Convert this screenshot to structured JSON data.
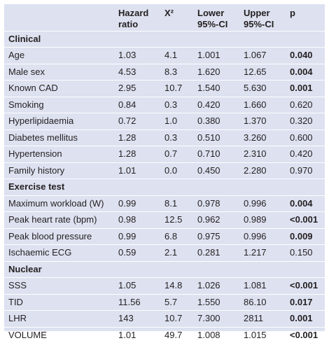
{
  "headers": [
    "",
    "Hazard ratio",
    "X²",
    "Lower 95%-CI",
    "Upper 95%-CI",
    "p"
  ],
  "sections": [
    {
      "title": "Clinical",
      "rows": [
        {
          "label": "Age",
          "hr": "1.03",
          "x2": "4.1",
          "lower": "1.001",
          "upper": "1.067",
          "p": "0.040",
          "sig": true
        },
        {
          "label": "Male sex",
          "hr": "4.53",
          "x2": "8.3",
          "lower": "1.620",
          "upper": "12.65",
          "p": "0.004",
          "sig": true
        },
        {
          "label": "Known CAD",
          "hr": "2.95",
          "x2": "10.7",
          "lower": "1.540",
          "upper": "5.630",
          "p": "0.001",
          "sig": true
        },
        {
          "label": "Smoking",
          "hr": "0.84",
          "x2": "0.3",
          "lower": "0.420",
          "upper": "1.660",
          "p": "0.620",
          "sig": false
        },
        {
          "label": "Hyperlipidaemia",
          "hr": "0.72",
          "x2": "1.0",
          "lower": "0.380",
          "upper": "1.370",
          "p": "0.320",
          "sig": false
        },
        {
          "label": "Diabetes mellitus",
          "hr": "1.28",
          "x2": "0.3",
          "lower": "0.510",
          "upper": "3.260",
          "p": "0.600",
          "sig": false
        },
        {
          "label": "Hypertension",
          "hr": "1.28",
          "x2": "0.7",
          "lower": "0.710",
          "upper": "2.310",
          "p": "0.420",
          "sig": false
        },
        {
          "label": "Family history",
          "hr": "1.01",
          "x2": "0.0",
          "lower": "0.450",
          "upper": "2.280",
          "p": "0.970",
          "sig": false
        }
      ]
    },
    {
      "title": "Exercise test",
      "rows": [
        {
          "label": "Maximum workload (W)",
          "hr": "0.99",
          "x2": "8.1",
          "lower": "0.978",
          "upper": "0.996",
          "p": "0.004",
          "sig": true
        },
        {
          "label": "Peak heart rate (bpm)",
          "hr": "0.98",
          "x2": "12.5",
          "lower": "0.962",
          "upper": "0.989",
          "p": "<0.001",
          "sig": true
        },
        {
          "label": "Peak blood pressure",
          "hr": "0.99",
          "x2": "6.8",
          "lower": "0.975",
          "upper": "0.996",
          "p": "0.009",
          "sig": true
        },
        {
          "label": "Ischaemic ECG",
          "hr": "0.59",
          "x2": "2.1",
          "lower": "0.281",
          "upper": "1.217",
          "p": "0.150",
          "sig": false
        }
      ]
    },
    {
      "title": "Nuclear",
      "rows": [
        {
          "label": "SSS",
          "hr": "1.05",
          "x2": "14.8",
          "lower": "1.026",
          "upper": "1.081",
          "p": "<0.001",
          "sig": true
        },
        {
          "label": "TID",
          "hr": "11.56",
          "x2": "5.7",
          "lower": "1.550",
          "upper": "86.10",
          "p": "0.017",
          "sig": true
        },
        {
          "label": "LHR",
          "hr": "143",
          "x2": "10.7",
          "lower": "7.300",
          "upper": "2811",
          "p": "0.001",
          "sig": true
        },
        {
          "label": "VOLUME",
          "hr": "1.01",
          "x2": "49.7",
          "lower": "1.008",
          "upper": "1.015",
          "p": "<0.001",
          "sig": true
        }
      ]
    }
  ]
}
